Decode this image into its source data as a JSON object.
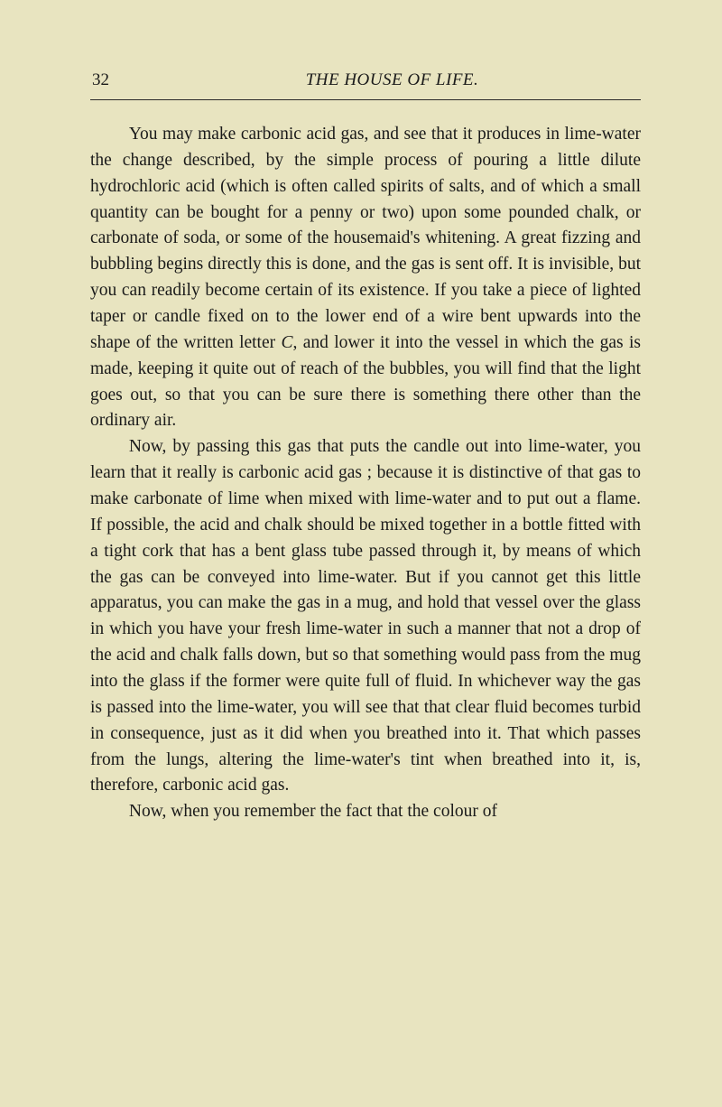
{
  "page": {
    "number": "32",
    "runningTitle": "THE HOUSE OF LIFE.",
    "paragraphs": [
      {
        "segments": [
          {
            "text": "You may make carbonic acid gas, and see that it produces in lime-water the change described, by the simple process of pouring a little dilute hydrochloric acid (which is often called spirits of salts, and of which a small quantity can be bought for a penny or two) upon some pounded chalk, or carbonate of soda, or some of the housemaid's whitening. A great fizzing and bubbling begins directly this is done, and the gas is sent off. It is invisible, but you can readily become certain of its existence. If you take a piece of lighted taper or candle fixed on to the lower end of a wire bent upwards into the shape of the written letter ",
            "italic": false
          },
          {
            "text": "C",
            "italic": true
          },
          {
            "text": ", and lower it into the vessel in which the gas is made, keeping it quite out of reach of the bubbles, you will find that the light goes out, so that you can be sure there is something there other than the ordinary air.",
            "italic": false
          }
        ]
      },
      {
        "segments": [
          {
            "text": "Now, by passing this gas that puts the candle out into lime-water, you learn that it really is carbonic acid gas ; because it is distinctive of that gas to make carbonate of lime when mixed with lime-water and to put out a flame. If possible, the acid and chalk should be mixed together in a bottle fitted with a tight cork that has a bent glass tube passed through it, by means of which the gas can be conveyed into lime-water. But if you cannot get this little apparatus, you can make the gas in a mug, and hold that vessel over the glass in which you have your fresh lime-water in such a manner that not a drop of the acid and chalk falls down, but so that something would pass from the mug into the glass if the former were quite full of fluid. In whichever way the gas is passed into the lime-water, you will see that that clear fluid becomes turbid in consequence, just as it did when you breathed into it. That which passes from the lungs, altering the lime-water's tint when breathed into it, is, therefore, carbonic acid gas.",
            "italic": false
          }
        ]
      },
      {
        "segments": [
          {
            "text": "Now, when you remember the fact that the colour of",
            "italic": false
          }
        ]
      }
    ]
  },
  "colors": {
    "background": "#e8e4c0",
    "text": "#1a1a1a",
    "rule": "#2a2a2a"
  },
  "typography": {
    "body_fontsize": 19.5,
    "header_fontsize": 19,
    "line_height": 1.48,
    "font_family": "Georgia, Times New Roman, serif"
  }
}
